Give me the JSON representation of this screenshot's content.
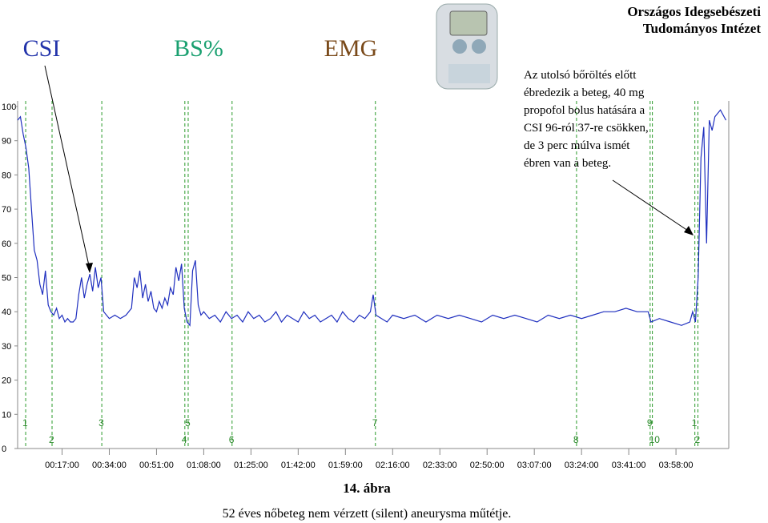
{
  "header": {
    "institution": [
      "Országos Idegsebészeti",
      "Tudományos Intézet"
    ],
    "channels": [
      "BS%",
      "EMG"
    ]
  },
  "annotation": [
    "Az utolsó bőröltés előtt",
    "ébredezik a beteg, 40 mg",
    "propofol bolus hatására a",
    "CSI 96-ról 37-re csökken,",
    "de 3 perc múlva ismét",
    "ébren van a beteg."
  ],
  "figure": {
    "caption": "14. ábra",
    "description": "52 éves nőbeteg nem vérzett (silent) aneurysma műtétje."
  },
  "chart_data": {
    "type": "line",
    "series": [
      {
        "name": "CSI",
        "color": "#1f2fbf",
        "x": [
          1,
          2,
          3,
          4,
          5,
          6,
          7,
          8,
          9,
          10,
          11,
          12,
          13,
          14,
          15,
          16,
          17,
          18,
          19,
          20,
          21,
          22,
          23,
          24,
          25,
          26,
          27,
          28,
          29,
          30,
          31,
          32,
          33,
          34,
          36,
          38,
          40,
          42,
          43,
          44,
          45,
          46,
          47,
          48,
          49,
          50,
          51,
          52,
          53,
          54,
          55,
          56,
          57,
          58,
          59,
          60,
          61,
          62,
          63,
          64,
          65,
          66,
          67,
          68,
          70,
          72,
          74,
          76,
          78,
          80,
          82,
          84,
          86,
          88,
          90,
          92,
          94,
          96,
          98,
          100,
          102,
          104,
          106,
          108,
          110,
          112,
          114,
          116,
          118,
          120,
          122,
          124,
          126,
          128,
          129,
          130,
          132,
          134,
          136,
          140,
          144,
          148,
          152,
          156,
          160,
          164,
          168,
          172,
          176,
          180,
          184,
          188,
          192,
          196,
          200,
          204,
          208,
          212,
          216,
          220,
          224,
          228,
          229,
          232,
          236,
          240,
          243,
          244,
          245,
          246,
          247,
          248,
          249,
          250,
          251,
          252,
          254,
          256
        ],
        "values": [
          96,
          97,
          92,
          88,
          82,
          70,
          58,
          55,
          48,
          45,
          52,
          42,
          40,
          39,
          41,
          38,
          39,
          37,
          38,
          37,
          37,
          38,
          45,
          50,
          44,
          48,
          51,
          46,
          53,
          47,
          50,
          40,
          39,
          38,
          39,
          38,
          39,
          41,
          50,
          47,
          52,
          44,
          48,
          43,
          46,
          41,
          40,
          43,
          41,
          44,
          42,
          47,
          45,
          53,
          49,
          54,
          41,
          37,
          36,
          52,
          55,
          42,
          39,
          40,
          38,
          39,
          37,
          40,
          38,
          39,
          37,
          40,
          38,
          39,
          37,
          38,
          40,
          37,
          39,
          38,
          37,
          40,
          38,
          39,
          37,
          38,
          39,
          37,
          40,
          38,
          37,
          39,
          38,
          40,
          45,
          39,
          38,
          37,
          39,
          38,
          39,
          37,
          39,
          38,
          39,
          38,
          37,
          39,
          38,
          39,
          38,
          37,
          39,
          38,
          39,
          38,
          39,
          40,
          40,
          41,
          40,
          40,
          37,
          38,
          37,
          36,
          37,
          40,
          37,
          50,
          85,
          94,
          60,
          96,
          93,
          97,
          99,
          96
        ]
      }
    ],
    "xlim": [
      1,
      257
    ],
    "ylim": [
      0,
      100
    ],
    "yticks": [
      0,
      10,
      20,
      30,
      40,
      50,
      60,
      70,
      80,
      90,
      100
    ],
    "xticks": [
      {
        "value": 17,
        "label": "00:17:00"
      },
      {
        "value": 34,
        "label": "00:34:00"
      },
      {
        "value": 51,
        "label": "00:51:00"
      },
      {
        "value": 68,
        "label": "01:08:00"
      },
      {
        "value": 85,
        "label": "01:25:00"
      },
      {
        "value": 102,
        "label": "01:42:00"
      },
      {
        "value": 119,
        "label": "01:59:00"
      },
      {
        "value": 136,
        "label": "02:16:00"
      },
      {
        "value": 153,
        "label": "02:33:00"
      },
      {
        "value": 170,
        "label": "02:50:00"
      },
      {
        "value": 187,
        "label": "03:07:00"
      },
      {
        "value": 204,
        "label": "03:24:00"
      },
      {
        "value": 221,
        "label": "03:41:00"
      },
      {
        "value": 238,
        "label": "03:58:00"
      }
    ],
    "events": [
      {
        "label": "1",
        "x": 3.9
      },
      {
        "label": "2",
        "x": 13.4
      },
      {
        "label": "3",
        "x": 31.3
      },
      {
        "label": "4",
        "x": 61.2
      },
      {
        "label": "5",
        "x": 62.4
      },
      {
        "label": "6",
        "x": 78.2
      },
      {
        "label": "7",
        "x": 129.8
      },
      {
        "label": "8",
        "x": 202.2
      },
      {
        "label": "9",
        "x": 228.7
      },
      {
        "label": "10",
        "x": 229.5
      },
      {
        "label": "1",
        "x": 244.8
      },
      {
        "label": "2",
        "x": 245.9
      }
    ]
  }
}
